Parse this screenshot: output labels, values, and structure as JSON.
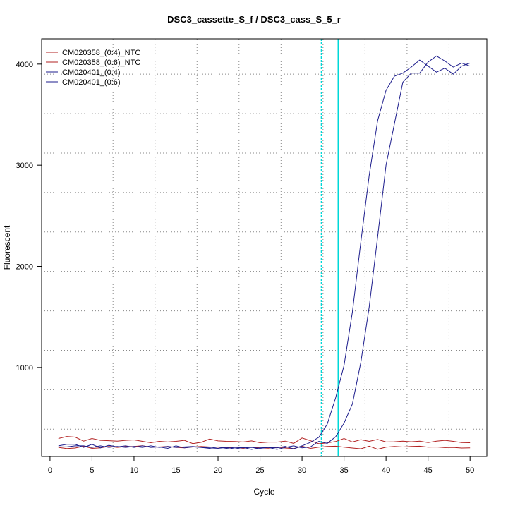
{
  "chart_data": {
    "type": "line",
    "title": "DSC3_cassette_S_f / DSC3_cass_S_5_r",
    "xlabel": "Cycle",
    "ylabel": "Fluorescent",
    "xlim": [
      -1,
      52
    ],
    "ylim": [
      120,
      4250
    ],
    "xticks": [
      0,
      5,
      10,
      15,
      20,
      25,
      30,
      35,
      40,
      45,
      50
    ],
    "yticks": [
      1000,
      2000,
      3000,
      4000
    ],
    "x_grid": [
      7.5,
      12.5,
      17.5,
      22.5,
      27.5,
      32.5,
      37.5,
      42.5,
      47.5
    ],
    "y_grid": [
      390,
      780,
      1170,
      1560,
      1950,
      2340,
      2730,
      3120,
      3510,
      3900
    ],
    "grid": true,
    "legend_position": "top-left",
    "threshold_cycles": [
      32.3,
      34.3
    ],
    "threshold_color": "#00d8d8",
    "series": [
      {
        "name": "CM020358_(0:4)_NTC",
        "color": "#b22222",
        "x": [
          1,
          2,
          3,
          4,
          5,
          6,
          7,
          8,
          9,
          10,
          11,
          12,
          13,
          14,
          15,
          16,
          17,
          18,
          19,
          20,
          21,
          22,
          23,
          24,
          25,
          26,
          27,
          28,
          29,
          30,
          31,
          32,
          33,
          34,
          35,
          36,
          37,
          38,
          39,
          40,
          41,
          42,
          43,
          44,
          45,
          46,
          47,
          48,
          49,
          50
        ],
        "y": [
          298,
          318,
          312,
          272,
          298,
          280,
          276,
          272,
          280,
          284,
          270,
          256,
          270,
          264,
          270,
          280,
          248,
          260,
          292,
          274,
          270,
          268,
          264,
          274,
          256,
          262,
          262,
          272,
          250,
          303,
          276,
          246,
          254,
          268,
          298,
          264,
          286,
          270,
          288,
          264,
          266,
          272,
          266,
          272,
          258,
          272,
          280,
          270,
          258,
          256
        ]
      },
      {
        "name": "CM020358_(0:6)_NTC",
        "color": "#b22222",
        "x": [
          1,
          2,
          3,
          4,
          5,
          6,
          7,
          8,
          9,
          10,
          11,
          12,
          13,
          14,
          15,
          16,
          17,
          18,
          19,
          20,
          21,
          22,
          23,
          24,
          25,
          26,
          27,
          28,
          29,
          30,
          31,
          32,
          33,
          34,
          35,
          36,
          37,
          38,
          39,
          40,
          41,
          42,
          43,
          44,
          45,
          46,
          47,
          48,
          49,
          50
        ],
        "y": [
          210,
          198,
          204,
          222,
          200,
          206,
          220,
          210,
          218,
          220,
          226,
          212,
          214,
          220,
          210,
          206,
          214,
          220,
          214,
          212,
          206,
          212,
          200,
          214,
          206,
          202,
          212,
          204,
          198,
          222,
          200,
          212,
          220,
          222,
          212,
          204,
          196,
          222,
          192,
          212,
          220,
          214,
          220,
          222,
          212,
          214,
          208,
          210,
          204,
          206
        ]
      },
      {
        "name": "CM020401_(0:4)",
        "color": "#1c1c8c",
        "x": [
          1,
          2,
          3,
          4,
          5,
          6,
          7,
          8,
          9,
          10,
          11,
          12,
          13,
          14,
          15,
          16,
          17,
          18,
          19,
          20,
          21,
          22,
          23,
          24,
          25,
          26,
          27,
          28,
          29,
          30,
          31,
          32,
          33,
          34,
          35,
          36,
          37,
          38,
          39,
          40,
          41,
          42,
          43,
          44,
          45,
          46,
          47,
          48,
          49,
          50
        ],
        "y": [
          225,
          240,
          240,
          210,
          240,
          205,
          230,
          215,
          225,
          210,
          225,
          210,
          215,
          200,
          225,
          205,
          215,
          210,
          205,
          200,
          210,
          195,
          210,
          190,
          205,
          210,
          205,
          220,
          195,
          225,
          260,
          310,
          440,
          700,
          1020,
          1550,
          2240,
          2900,
          3440,
          3740,
          3880,
          3910,
          3970,
          4040,
          3980,
          3920,
          3960,
          3900,
          3980,
          4010
        ]
      },
      {
        "name": "CM020401_(0:6)",
        "color": "#1c1c8c",
        "x": [
          1,
          2,
          3,
          4,
          5,
          6,
          7,
          8,
          9,
          10,
          11,
          12,
          13,
          14,
          15,
          16,
          17,
          18,
          19,
          20,
          21,
          22,
          23,
          24,
          25,
          26,
          27,
          28,
          29,
          30,
          31,
          32,
          33,
          34,
          35,
          36,
          37,
          38,
          39,
          40,
          41,
          42,
          43,
          44,
          45,
          46,
          47,
          48,
          49,
          50
        ],
        "y": [
          215,
          215,
          225,
          225,
          210,
          225,
          210,
          220,
          210,
          220,
          210,
          225,
          210,
          220,
          210,
          215,
          220,
          210,
          200,
          215,
          200,
          210,
          205,
          210,
          200,
          210,
          190,
          210,
          225,
          205,
          215,
          270,
          250,
          315,
          450,
          640,
          1050,
          1600,
          2290,
          3000,
          3410,
          3820,
          3910,
          3910,
          4020,
          4080,
          4030,
          3970,
          4010,
          3980
        ]
      }
    ]
  }
}
